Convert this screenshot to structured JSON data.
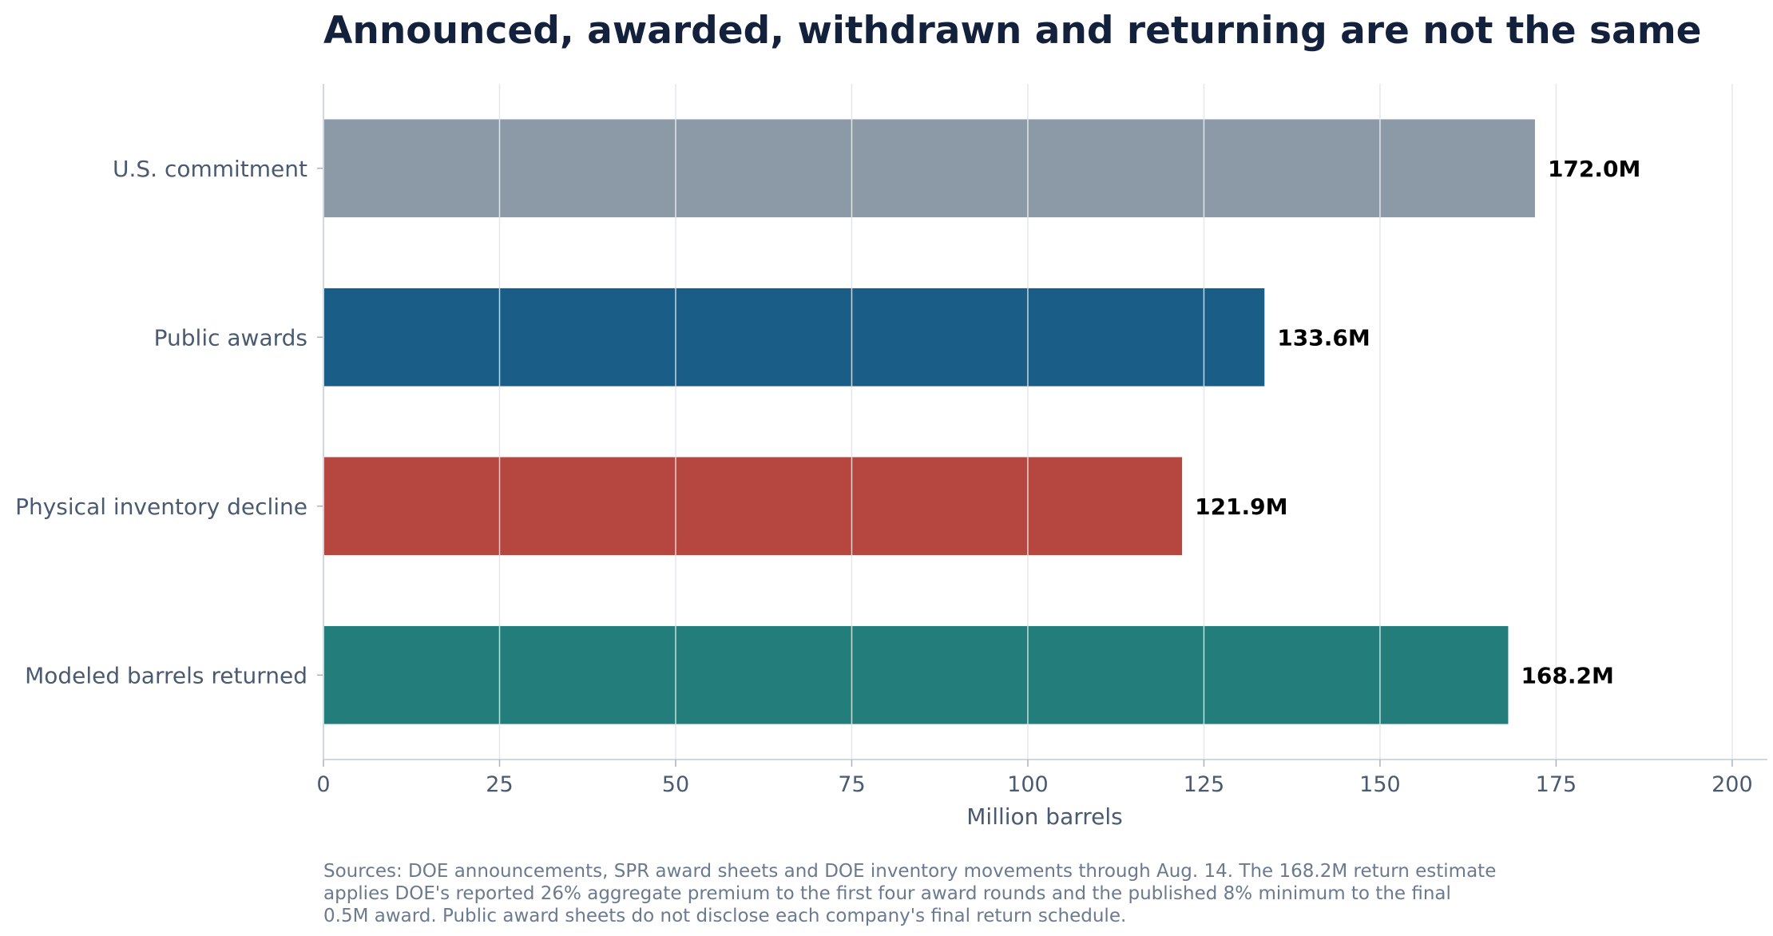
{
  "chart_data": {
    "type": "bar",
    "orientation": "horizontal",
    "title": "Announced, awarded, withdrawn and returning are not the same",
    "xlabel": "Million barrels",
    "ylabel": "",
    "xlim": [
      0,
      205
    ],
    "xticks": [
      0,
      25,
      50,
      75,
      100,
      125,
      150,
      175,
      200
    ],
    "grid": "vertical",
    "categories": [
      "U.S. commitment",
      "Public awards",
      "Physical inventory decline",
      "Modeled barrels returned"
    ],
    "values": [
      172.0,
      133.6,
      121.9,
      168.2
    ],
    "data_labels": [
      "172.0M",
      "133.6M",
      "121.9M",
      "168.2M"
    ],
    "colors": [
      "#8c9aa8",
      "#1a5e88",
      "#b54740",
      "#237e7b"
    ],
    "note_lines": [
      "Sources: DOE announcements, SPR award sheets and DOE inventory movements through Aug. 14. The 168.2M return estimate",
      "applies DOE's reported 26% aggregate premium to the first four award rounds and the published 8% minimum to the final",
      "0.5M award. Public award sheets do not disclose each company's final return schedule."
    ]
  }
}
